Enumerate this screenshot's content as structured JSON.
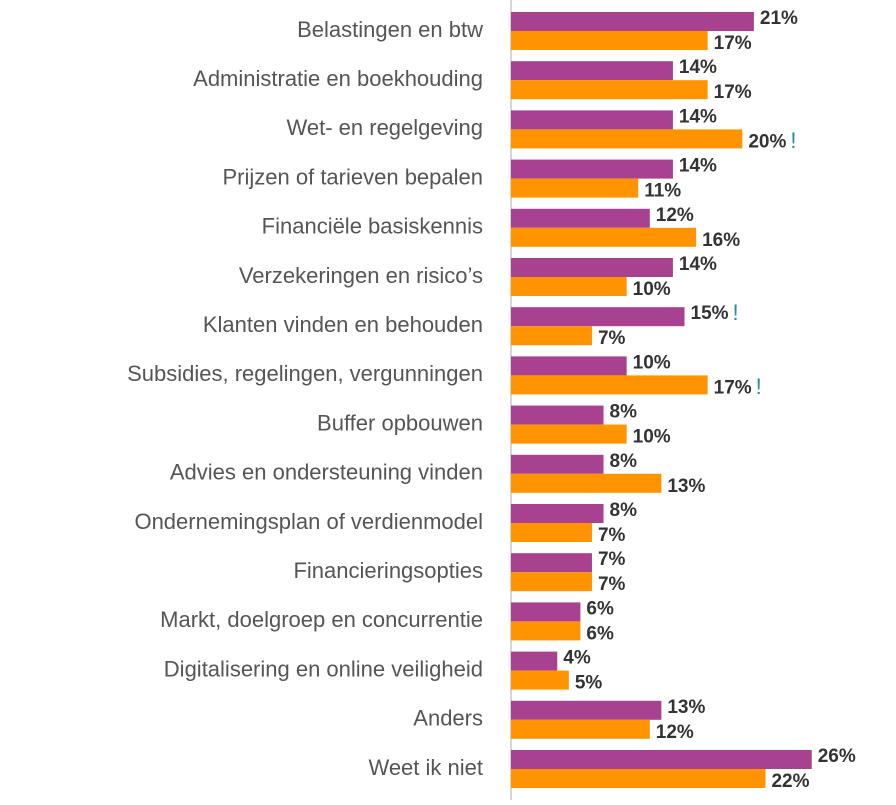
{
  "chart_data": {
    "type": "bar",
    "orientation": "horizontal",
    "categories": [
      "Belastingen en btw",
      "Administratie en boekhouding",
      "Wet- en regelgeving",
      "Prijzen of tarieven bepalen",
      "Financiële basiskennis ",
      "Verzekeringen en risico’s",
      "Klanten vinden en behouden",
      "Subsidies, regelingen, vergunningen",
      "Buffer opbouwen",
      "Advies en ondersteuning vinden",
      "Ondernemingsplan of verdienmodel",
      "Financieringsopties",
      "Markt, doelgroep en concurrentie",
      "Digitalisering en online veiligheid",
      "Anders",
      "Weet ik niet"
    ],
    "xlim": [
      0,
      30
    ],
    "series": [
      {
        "color": "#a8418f",
        "values": [
          21,
          14,
          14,
          14,
          12,
          14,
          15,
          10,
          8,
          8,
          8,
          7,
          6,
          4,
          13,
          26
        ],
        "value_labels": [
          "21%",
          "14%",
          "14%",
          "14%",
          "12%",
          "14%",
          "15%",
          "10%",
          "8%",
          "8%",
          "8%",
          "7%",
          "6%",
          "4%",
          "13%",
          "26%"
        ],
        "value_flags": [
          null,
          null,
          null,
          null,
          null,
          null,
          "!",
          null,
          null,
          null,
          null,
          null,
          null,
          null,
          null,
          null
        ]
      },
      {
        "color": "#ff9400",
        "values": [
          17,
          17,
          20,
          11,
          16,
          10,
          7,
          17,
          10,
          13,
          7,
          7,
          6,
          5,
          12,
          22
        ],
        "value_labels": [
          "17%",
          "17%",
          "20%",
          "11%",
          "16%",
          "10%",
          "7%",
          "17%",
          "10%",
          "13%",
          "7%",
          "7%",
          "6%",
          "5%",
          "12%",
          "22%"
        ],
        "value_flags": [
          null,
          null,
          "!",
          null,
          null,
          null,
          null,
          "!",
          null,
          null,
          null,
          null,
          null,
          null,
          null,
          null
        ]
      }
    ],
    "flag_color": "#2a8a9a"
  }
}
